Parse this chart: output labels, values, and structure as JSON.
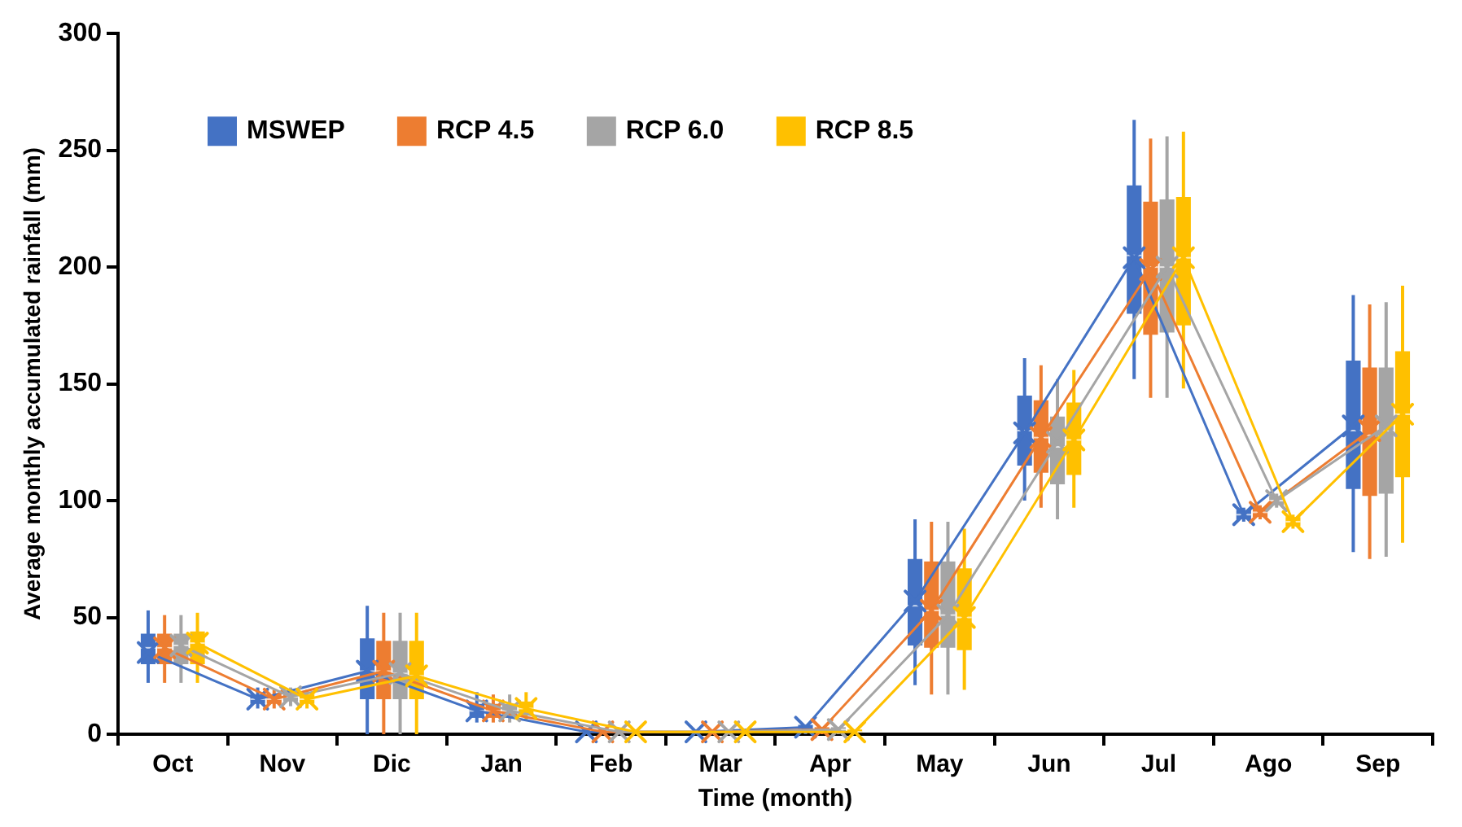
{
  "chart_data": {
    "type": "box",
    "xlabel": "Time (month)",
    "ylabel": "Average monthly accumulated rainfall (mm)",
    "categories": [
      "Oct",
      "Nov",
      "Dic",
      "Jan",
      "Feb",
      "Mar",
      "Apr",
      "May",
      "Jun",
      "Jul",
      "Ago",
      "Sep"
    ],
    "ylim": [
      0,
      300
    ],
    "yticks": [
      0,
      50,
      100,
      150,
      200,
      250,
      300
    ],
    "legend": "top left",
    "marker": "cross",
    "series": [
      {
        "name": "MSWEP",
        "color": "#4472c4",
        "boxes": [
          {
            "low": 22,
            "q1": 30,
            "median": 37,
            "q3": 43,
            "high": 53
          },
          {
            "low": 11,
            "q1": 13,
            "median": 15,
            "q3": 17,
            "high": 20
          },
          {
            "low": 0,
            "q1": 15,
            "median": 27,
            "q3": 41,
            "high": 55
          },
          {
            "low": 5,
            "q1": 7,
            "median": 10,
            "q3": 13,
            "high": 18
          },
          {
            "low": 0,
            "q1": 0,
            "median": 1,
            "q3": 1,
            "high": 2
          },
          {
            "low": 0,
            "q1": 0,
            "median": 1,
            "q3": 1,
            "high": 2
          },
          {
            "low": 0,
            "q1": 0,
            "median": 2,
            "q3": 4,
            "high": 4
          },
          {
            "low": 21,
            "q1": 38,
            "median": 55,
            "q3": 75,
            "high": 92
          },
          {
            "low": 100,
            "q1": 115,
            "median": 130,
            "q3": 145,
            "high": 161
          },
          {
            "low": 152,
            "q1": 180,
            "median": 205,
            "q3": 235,
            "high": 263
          },
          {
            "low": 91,
            "q1": 92,
            "median": 94,
            "q3": 96,
            "high": 97
          },
          {
            "low": 78,
            "q1": 105,
            "median": 130,
            "q3": 160,
            "high": 188
          }
        ]
      },
      {
        "name": "RCP 4.5",
        "color": "#ed7d31",
        "boxes": [
          {
            "low": 22,
            "q1": 30,
            "median": 37,
            "q3": 43,
            "high": 51
          },
          {
            "low": 11,
            "q1": 13,
            "median": 15,
            "q3": 17,
            "high": 19
          },
          {
            "low": 0,
            "q1": 15,
            "median": 27,
            "q3": 40,
            "high": 52
          },
          {
            "low": 5,
            "q1": 7,
            "median": 10,
            "q3": 13,
            "high": 17
          },
          {
            "low": 0,
            "q1": 0,
            "median": 1,
            "q3": 1,
            "high": 2
          },
          {
            "low": 0,
            "q1": 0,
            "median": 1,
            "q3": 1,
            "high": 2
          },
          {
            "low": 0,
            "q1": 0,
            "median": 2,
            "q3": 3,
            "high": 3
          },
          {
            "low": 17,
            "q1": 37,
            "median": 53,
            "q3": 74,
            "high": 91
          },
          {
            "low": 97,
            "q1": 112,
            "median": 127,
            "q3": 143,
            "high": 158
          },
          {
            "low": 144,
            "q1": 171,
            "median": 200,
            "q3": 228,
            "high": 255
          },
          {
            "low": 92,
            "q1": 93,
            "median": 95,
            "q3": 97,
            "high": 98
          },
          {
            "low": 75,
            "q1": 102,
            "median": 128,
            "q3": 157,
            "high": 184
          }
        ]
      },
      {
        "name": "RCP 6.0",
        "color": "#a5a5a5",
        "boxes": [
          {
            "low": 22,
            "q1": 30,
            "median": 38,
            "q3": 43,
            "high": 51
          },
          {
            "low": 12,
            "q1": 14,
            "median": 16,
            "q3": 18,
            "high": 20
          },
          {
            "low": 0,
            "q1": 15,
            "median": 26,
            "q3": 40,
            "high": 52
          },
          {
            "low": 5,
            "q1": 7,
            "median": 10,
            "q3": 13,
            "high": 17
          },
          {
            "low": 0,
            "q1": 0,
            "median": 1,
            "q3": 1,
            "high": 2
          },
          {
            "low": 0,
            "q1": 0,
            "median": 1,
            "q3": 1,
            "high": 2
          },
          {
            "low": 0,
            "q1": 0,
            "median": 2,
            "q3": 3,
            "high": 3
          },
          {
            "low": 17,
            "q1": 37,
            "median": 51,
            "q3": 74,
            "high": 91
          },
          {
            "low": 92,
            "q1": 107,
            "median": 123,
            "q3": 136,
            "high": 152
          },
          {
            "low": 144,
            "q1": 172,
            "median": 200,
            "q3": 229,
            "high": 256
          },
          {
            "low": 97,
            "q1": 98,
            "median": 100,
            "q3": 102,
            "high": 103
          },
          {
            "low": 76,
            "q1": 103,
            "median": 130,
            "q3": 157,
            "high": 185
          }
        ]
      },
      {
        "name": "RCP 8.5",
        "color": "#ffc000",
        "boxes": [
          {
            "low": 22,
            "q1": 30,
            "median": 39,
            "q3": 44,
            "high": 52
          },
          {
            "low": 11,
            "q1": 13,
            "median": 15,
            "q3": 17,
            "high": 19
          },
          {
            "low": 0,
            "q1": 15,
            "median": 25,
            "q3": 40,
            "high": 52
          },
          {
            "low": 6,
            "q1": 8,
            "median": 11,
            "q3": 14,
            "high": 18
          },
          {
            "low": 0,
            "q1": 0,
            "median": 1,
            "q3": 1,
            "high": 2
          },
          {
            "low": 0,
            "q1": 0,
            "median": 1,
            "q3": 1,
            "high": 2
          },
          {
            "low": 0,
            "q1": 0,
            "median": 1,
            "q3": 2,
            "high": 2
          },
          {
            "low": 19,
            "q1": 36,
            "median": 50,
            "q3": 71,
            "high": 88
          },
          {
            "low": 97,
            "q1": 111,
            "median": 126,
            "q3": 142,
            "high": 156
          },
          {
            "low": 148,
            "q1": 175,
            "median": 204,
            "q3": 230,
            "high": 258
          },
          {
            "low": 88,
            "q1": 89,
            "median": 91,
            "q3": 93,
            "high": 94
          },
          {
            "low": 82,
            "q1": 110,
            "median": 137,
            "q3": 164,
            "high": 192
          }
        ]
      },
      {
        "type": "line",
        "color": "#4472c4",
        "values": [
          35,
          15,
          27,
          10,
          1,
          1,
          3,
          57,
          129,
          204,
          94,
          132
        ]
      },
      {
        "type": "line",
        "color": "#ed7d31",
        "values": [
          37,
          15,
          27,
          10,
          1,
          1,
          2,
          53,
          127,
          199,
          95,
          130
        ]
      },
      {
        "type": "line",
        "color": "#a5a5a5",
        "values": [
          38,
          16,
          26,
          10,
          1,
          1,
          2,
          51,
          125,
          200,
          100,
          132
        ]
      },
      {
        "type": "line",
        "color": "#ffc000",
        "values": [
          39,
          15,
          25,
          11,
          1,
          1,
          1,
          50,
          126,
          204,
          91,
          137
        ]
      }
    ]
  }
}
